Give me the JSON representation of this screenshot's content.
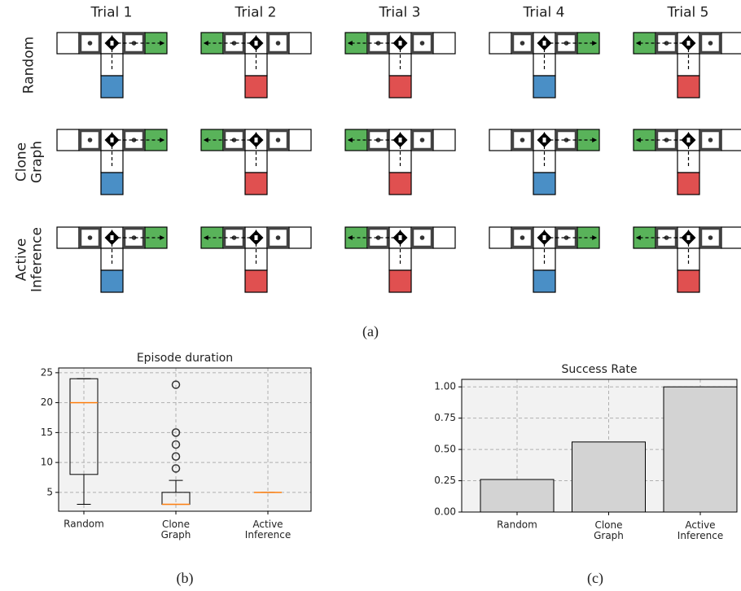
{
  "panel_a": {
    "columns": [
      "Trial 1",
      "Trial 2",
      "Trial 3",
      "Trial 4",
      "Trial 5"
    ],
    "rows": [
      "Random",
      "Clone\nGraph",
      "Active\nInference"
    ],
    "caption": "(a)"
  },
  "chart_data": [
    {
      "type": "box",
      "title": "Episode duration",
      "caption": "(b)",
      "categories": [
        "Random",
        "Clone\nGraph",
        "Active\nInference"
      ],
      "boxes": [
        {
          "whislo": 3,
          "q1": 8,
          "med": 20,
          "q3": 24,
          "whishi": 24,
          "fliers": []
        },
        {
          "whislo": 3,
          "q1": 3,
          "med": 3,
          "q3": 5,
          "whishi": 7,
          "fliers": [
            9,
            11,
            13,
            15,
            23
          ]
        },
        {
          "whislo": 5,
          "q1": 5,
          "med": 5,
          "q3": 5,
          "whishi": 5,
          "fliers": []
        }
      ],
      "ylim": [
        1.85,
        25.8
      ],
      "yticks": [
        5,
        10,
        15,
        20,
        25
      ],
      "grid": true,
      "color": "#000000",
      "median_color": "#ff7f0e"
    },
    {
      "type": "bar",
      "title": "Success Rate",
      "caption": "(c)",
      "categories": [
        "Random",
        "Clone\nGraph",
        "Active\nInference"
      ],
      "values": [
        0.26,
        0.56,
        1.0
      ],
      "ylim": [
        0,
        1.06
      ],
      "yticks": [
        {
          "value": 0,
          "label": "0.00"
        },
        {
          "value": 0.25,
          "label": "0.25"
        },
        {
          "value": 0.5,
          "label": "0.50"
        },
        {
          "value": 0.75,
          "label": "0.75"
        },
        {
          "value": 1.0,
          "label": "1.00"
        }
      ],
      "grid": true,
      "color": "#d3d3d3"
    }
  ]
}
